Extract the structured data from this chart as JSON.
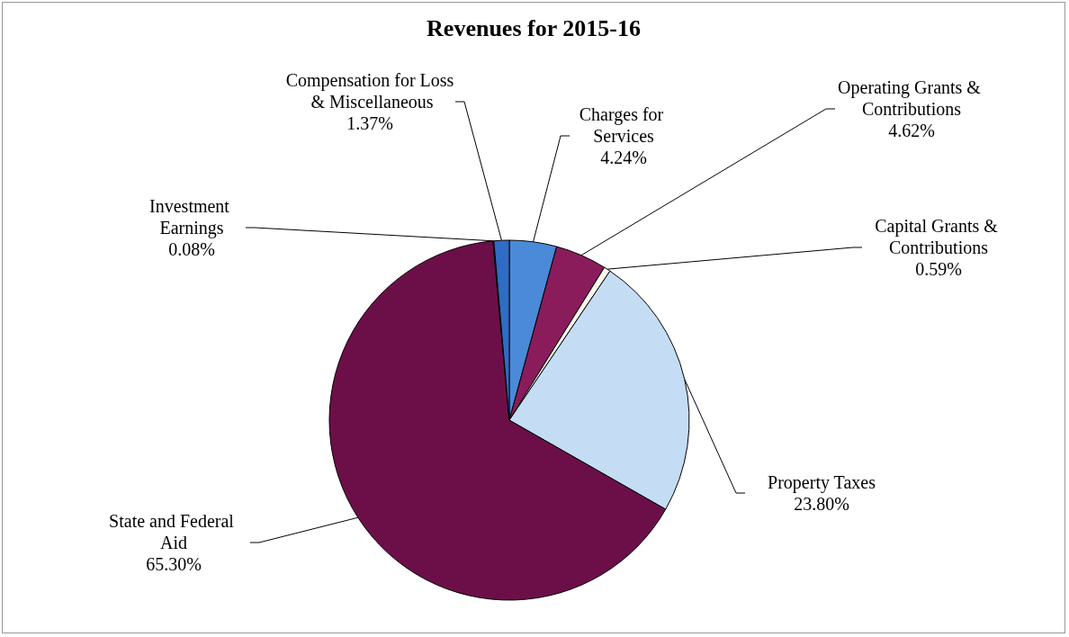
{
  "chart_data": {
    "type": "pie",
    "title": "Revenues for 2015-16",
    "categories": [
      "Charges for Services",
      "Operating Grants & Contributions",
      "Capital Grants & Contributions",
      "Property Taxes",
      "State and Federal Aid",
      "Investment Earnings",
      "Compensation for Loss & Miscellaneous"
    ],
    "values": [
      4.24,
      4.62,
      0.59,
      23.8,
      65.3,
      0.08,
      1.37
    ],
    "value_labels": [
      "4.24%",
      "4.62%",
      "0.59%",
      "23.80%",
      "65.30%",
      "0.08%",
      "1.37%"
    ],
    "colors": [
      "#4a8ad8",
      "#8a1c5c",
      "#fbf6ea",
      "#c4dcf4",
      "#6c0f48",
      "#7a6fb0",
      "#2f6cc4"
    ],
    "legend": false
  }
}
